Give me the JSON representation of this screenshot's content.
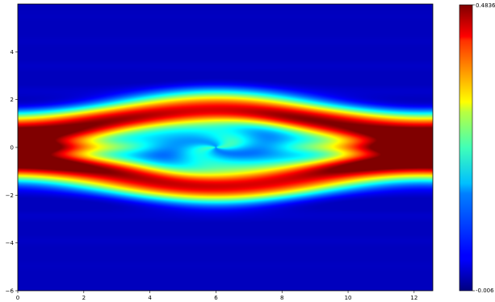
{
  "chart_data": {
    "type": "heatmap",
    "title": "",
    "xlabel": "",
    "ylabel": "",
    "xlim": [
      0,
      12.566
    ],
    "ylim": [
      -6,
      6
    ],
    "x_ticks": [
      0,
      2,
      4,
      6,
      8,
      10,
      12
    ],
    "y_ticks": [
      -6,
      -4,
      -2,
      0,
      2,
      4
    ],
    "colormap": "jet",
    "colorbar": {
      "min": -0.006,
      "max": 0.4836,
      "min_label": "-0.006",
      "max_label": "0.4836"
    },
    "field_description": "two-stream instability phase-space density with central vortex (cat's-eye) structure",
    "bands": {
      "upper_peak_y": 1.0,
      "lower_peak_y": -1.0,
      "vortex_center": [
        6.0,
        0.0
      ]
    }
  }
}
